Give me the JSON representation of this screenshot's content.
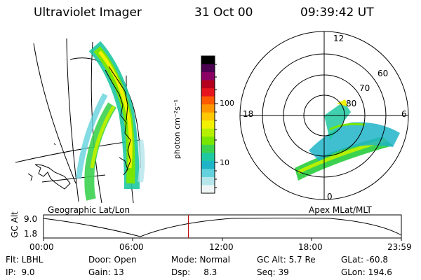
{
  "header": {
    "instrument": "Ultraviolet Imager",
    "date": "31 Oct 00",
    "time": "09:39:42 UT"
  },
  "left_panel": {
    "caption": "Geographic Lat/Lon"
  },
  "right_panel": {
    "caption": "Apex MLat/MLT",
    "mlt_labels": [
      "12",
      "18",
      "6",
      "0"
    ],
    "lat_labels": [
      "60",
      "70",
      "80"
    ]
  },
  "colorbar": {
    "label": "photon cm⁻²s⁻¹",
    "ticks": [
      "100",
      "10"
    ],
    "colors": [
      "#000000",
      "#4b0050",
      "#8b0064",
      "#b4001e",
      "#e6141e",
      "#ff5a00",
      "#ff9600",
      "#ffc800",
      "#f0f000",
      "#b4f000",
      "#78e600",
      "#3cd250",
      "#1ec8a0",
      "#1eb4c8",
      "#64d2dc",
      "#b4e6eb",
      "#f0f5f5"
    ]
  },
  "timeline": {
    "axis_label": "GC Alt",
    "y_ticks": [
      "9.0",
      "1.8"
    ],
    "x_ticks": [
      "00:00",
      "06:00",
      "12:00",
      "18:00",
      "23:59"
    ],
    "current_time_fraction": 0.405
  },
  "status": {
    "flt": "Flt: LBHL",
    "ip": "IP:  9.0",
    "door": "Door: Open",
    "gain": "Gain: 13",
    "mode": "Mode: Normal",
    "dsp": "Dsp:     8.3",
    "gc_alt": "GC Alt: 5.7 Re",
    "seq": "Seq: 39",
    "glat": "GLat: -60.8",
    "glon": "GLon: 194.6"
  }
}
